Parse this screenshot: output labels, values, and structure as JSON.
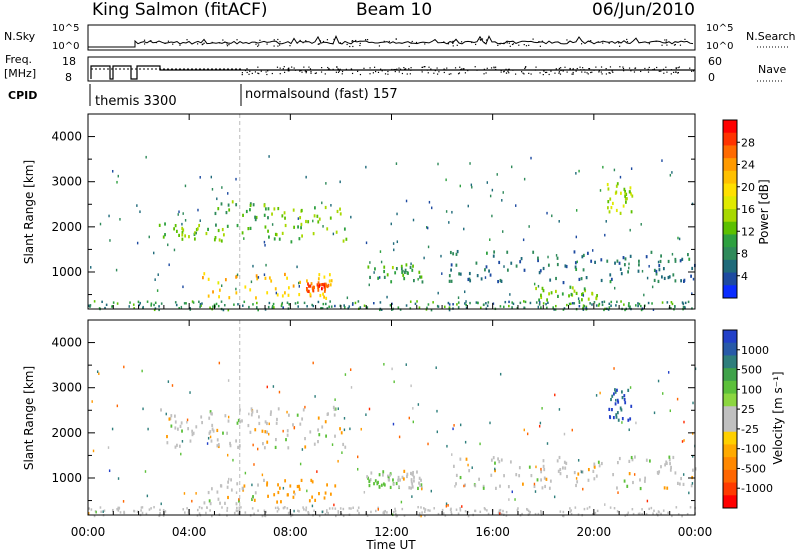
{
  "header": {
    "radar": "King Salmon (fitACF)",
    "beam": "Beam 10",
    "date": "06/Jun/2010"
  },
  "summary": {
    "nsky_label": "N.Sky",
    "nsky_ticks": [
      "10^5",
      "10^0"
    ],
    "nsearch_label": "N.Search",
    "freq_label_1": "Freq.",
    "freq_label_2": "[MHz]",
    "freq_ticks": [
      "18",
      "8"
    ],
    "nave_label": "Nave",
    "nave_ticks": [
      "60",
      "0"
    ],
    "cpid_label": "CPID",
    "cpid_segments": [
      "themis 3300",
      "normalsound (fast) 157"
    ]
  },
  "colorbars": {
    "power": {
      "title": "Power [dB]",
      "ticks": [
        "28",
        "24",
        "20",
        "16",
        "12",
        "8",
        "4"
      ],
      "colors": [
        "#ff0000",
        "#ff3300",
        "#ff6a00",
        "#ff9a00",
        "#ffc000",
        "#ffe000",
        "#e0ea00",
        "#a8d800",
        "#5cc000",
        "#2ea040",
        "#2f8a5a",
        "#1f6a7a",
        "#1d4aa0",
        "#0a2cff"
      ]
    },
    "velocity": {
      "title": "Velocity [m s⁻¹]",
      "ticks": [
        "1000",
        "500",
        "100",
        "25",
        "-25",
        "-100",
        "-500",
        "-1000"
      ],
      "colors": [
        "#2240c8",
        "#285aa8",
        "#2e7e7c",
        "#3fa24a",
        "#5cc03a",
        "#8cd640",
        "#c0c0c0",
        "#c0c0c0",
        "#ffd000",
        "#ffaa00",
        "#ff8800",
        "#ff6600",
        "#ff3a00",
        "#ff0000"
      ]
    }
  },
  "axes": {
    "ylabel": "Slant Range [km]",
    "xlabel": "Time UT",
    "y_ticks": [
      "1000",
      "2000",
      "3000",
      "4000"
    ],
    "x_ticks": [
      "00:00",
      "04:00",
      "08:00",
      "12:00",
      "16:00",
      "20:00",
      "00:00"
    ]
  },
  "chart_data": [
    {
      "type": "heatmap",
      "title": "King Salmon (fitACF) Beam 10 06/Jun/2010",
      "xlabel": "Time UT",
      "ylabel": "Slant Range [km]",
      "xlim": [
        0,
        24
      ],
      "ylim": [
        180,
        4500
      ],
      "colorbar": {
        "label": "Power [dB]",
        "range": [
          0,
          30
        ]
      },
      "regions": [
        {
          "t": [
            2.8,
            5.5
          ],
          "r": [
            1700,
            2100
          ],
          "value": 12
        },
        {
          "t": [
            5.0,
            7.2
          ],
          "r": [
            1900,
            2600
          ],
          "value": 10
        },
        {
          "t": [
            7.0,
            10.2
          ],
          "r": [
            1700,
            2500
          ],
          "value": 12
        },
        {
          "t": [
            4.5,
            9.8
          ],
          "r": [
            450,
            1000
          ],
          "value": 20
        },
        {
          "t": [
            8.5,
            9.5
          ],
          "r": [
            600,
            800
          ],
          "value": 26
        },
        {
          "t": [
            11.0,
            13.2
          ],
          "r": [
            800,
            1200
          ],
          "value": 10
        },
        {
          "t": [
            14.2,
            24.0
          ],
          "r": [
            800,
            1500
          ],
          "value": 6
        },
        {
          "t": [
            20.5,
            21.5
          ],
          "r": [
            2300,
            3000
          ],
          "value": 14
        },
        {
          "t": [
            17.5,
            20.5
          ],
          "r": [
            400,
            700
          ],
          "value": 12
        }
      ]
    },
    {
      "type": "heatmap",
      "title": "King Salmon (fitACF) Beam 10 06/Jun/2010",
      "xlabel": "Time UT",
      "ylabel": "Slant Range [km]",
      "xlim": [
        0,
        24
      ],
      "ylim": [
        180,
        4500
      ],
      "colorbar": {
        "label": "Velocity [m s⁻¹]",
        "range": [
          -1000,
          1000
        ]
      },
      "regions": [
        {
          "t": [
            2.8,
            10.2
          ],
          "r": [
            1700,
            2600
          ],
          "value": 0
        },
        {
          "t": [
            4.5,
            7.0
          ],
          "r": [
            450,
            1000
          ],
          "value": 0
        },
        {
          "t": [
            7.0,
            9.8
          ],
          "r": [
            500,
            1000
          ],
          "value": -200
        },
        {
          "t": [
            11.0,
            12.2
          ],
          "r": [
            800,
            1200
          ],
          "value": 100
        },
        {
          "t": [
            12.2,
            13.2
          ],
          "r": [
            800,
            1200
          ],
          "value": 0
        },
        {
          "t": [
            14.2,
            24.0
          ],
          "r": [
            800,
            1500
          ],
          "value": 0
        },
        {
          "t": [
            20.5,
            21.5
          ],
          "r": [
            2300,
            3000
          ],
          "value": 700
        }
      ]
    }
  ]
}
